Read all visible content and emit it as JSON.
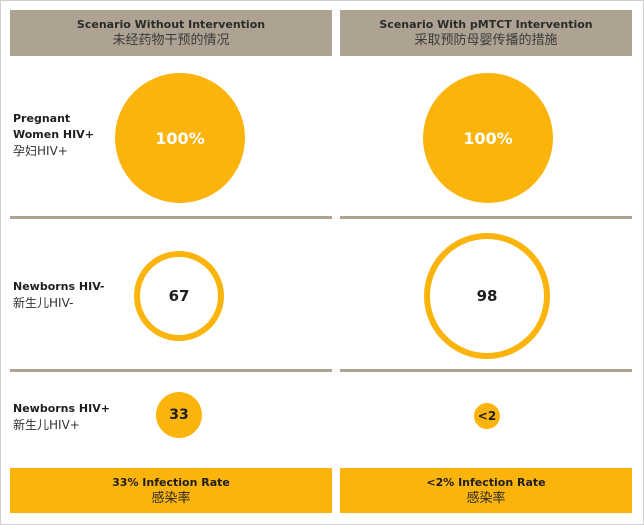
{
  "columns": {
    "left": {
      "title_en": "Scenario Without Intervention",
      "title_zh": "未经药物干预的情况"
    },
    "right": {
      "title_en": "Scenario With pMTCT Intervention",
      "title_zh": "采取预防母婴传播的措施"
    }
  },
  "rows": {
    "pregnant": {
      "label_en_line1": "Pregnant",
      "label_en_line2": "Women HIV+",
      "label_zh": "孕妇HIV+",
      "left_value": "100%",
      "right_value": "100%"
    },
    "negative": {
      "label_en": "Newborns HIV-",
      "label_zh": "新生儿HIV-",
      "left_value": "67",
      "right_value": "98"
    },
    "positive": {
      "label_en": "Newborns HIV+",
      "label_zh": "新生儿HIV+",
      "left_value": "33",
      "right_value": "<2"
    }
  },
  "footers": {
    "left": {
      "rate_en": "33% Infection Rate",
      "rate_zh": "感染率"
    },
    "right": {
      "rate_en": "<2% Infection Rate",
      "rate_zh": "感染率"
    }
  },
  "colors": {
    "accent": "#fbb40c",
    "header": "#aea392"
  }
}
